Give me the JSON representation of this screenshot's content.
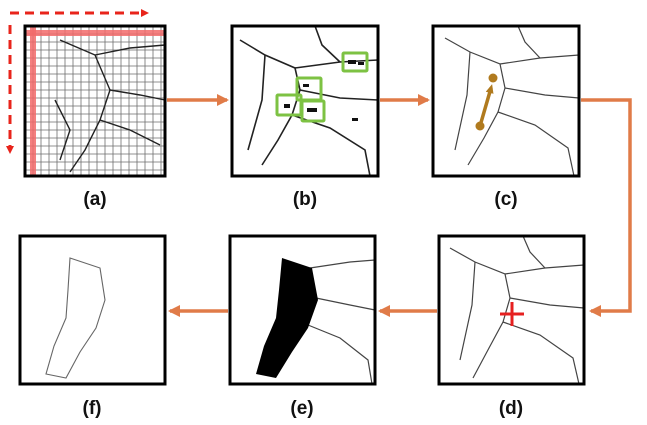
{
  "panels": [
    {
      "id": "a",
      "label": "(a)",
      "content": "map-with-grid-and-red-scan-lines"
    },
    {
      "id": "b",
      "label": "(b)",
      "content": "binarized-map-with-green-boxes"
    },
    {
      "id": "c",
      "label": "(c)",
      "content": "cleaned-map-with-direction-arrow"
    },
    {
      "id": "d",
      "label": "(d)",
      "content": "cleaned-map-with-red-seed-cross"
    },
    {
      "id": "e",
      "label": "(e)",
      "content": "map-with-filled-black-region"
    },
    {
      "id": "f",
      "label": "(f)",
      "content": "extracted-region-outline"
    }
  ],
  "flow": [
    "a",
    "b",
    "c",
    "d",
    "e",
    "f"
  ],
  "colors": {
    "flow_arrow": "#E07B48",
    "scan_dashes": "#E8241B",
    "grid_highlight": "#F26A6A",
    "detection_box": "#7DC243",
    "direction_arrow": "#B07A1E",
    "seed_cross": "#E62020",
    "panel_border": "#000000",
    "filled_region": "#000000"
  }
}
